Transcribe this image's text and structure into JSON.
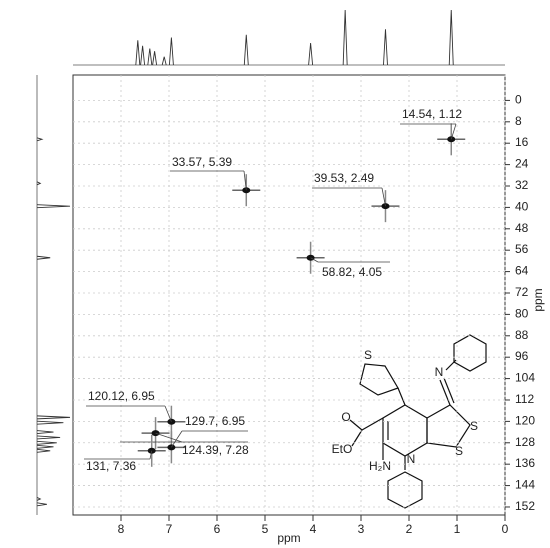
{
  "chart_data": {
    "type": "scatter",
    "x_label": "ppm",
    "y_label": "ppm",
    "xlim": [
      9,
      0
    ],
    "xticks": [
      8,
      7,
      6,
      5,
      4,
      3,
      2,
      1,
      0
    ],
    "ylim": [
      -9.5,
      155
    ],
    "yticks": [
      0,
      8,
      16,
      24,
      32,
      40,
      48,
      56,
      64,
      72,
      80,
      88,
      96,
      104,
      112,
      120,
      128,
      136,
      144,
      152
    ],
    "grid": true,
    "color": "#111111",
    "x": [
      1.12,
      2.49,
      4.05,
      5.39,
      6.95,
      6.95,
      7.28,
      7.36
    ],
    "values": [
      14.54,
      39.53,
      58.82,
      33.57,
      120.12,
      129.7,
      124.39,
      131
    ],
    "value_labels": [
      "14.54, 1.12",
      "39.53, 2.49",
      "58.82, 4.05",
      "33.57, 5.39",
      "120.12, 6.95",
      "129.7, 6.95",
      "124.39, 7.28",
      "131, 7.36"
    ],
    "top_projection": {
      "x": [
        7.65,
        7.55,
        7.4,
        7.3,
        7.1,
        6.95,
        5.39,
        4.05,
        3.33,
        2.49,
        1.12
      ],
      "values": [
        45,
        35,
        30,
        25,
        15,
        50,
        55,
        40,
        100,
        65,
        100
      ]
    },
    "left_projection": {
      "y": [
        14.54,
        31,
        39.53,
        58.82,
        118.5,
        120.5,
        124,
        126,
        128,
        129.5,
        131,
        149,
        151
      ],
      "values": [
        15,
        10,
        100,
        40,
        100,
        80,
        50,
        70,
        60,
        50,
        40,
        10,
        30
      ]
    },
    "structure_labels": [
      "S",
      "S",
      "S",
      "N",
      "N",
      "O",
      "EtO",
      "H₂N"
    ]
  }
}
